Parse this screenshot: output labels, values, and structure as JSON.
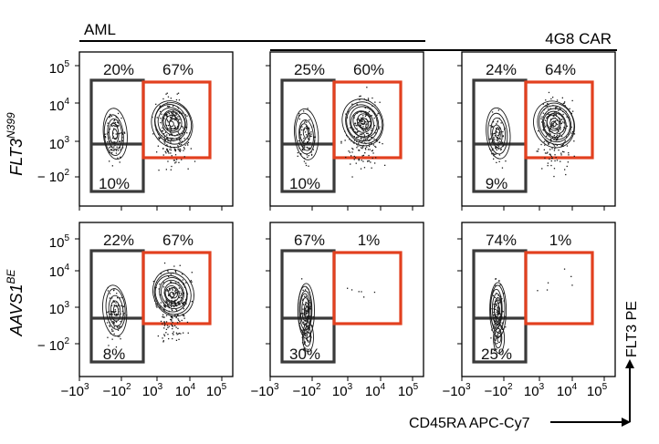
{
  "header": {
    "group_left": "AML",
    "group_right": "4G8 CAR"
  },
  "row_labels": [
    {
      "base": "FLT3",
      "sup": "N399"
    },
    {
      "base": "AAVS1",
      "sup": "BE"
    }
  ],
  "axes": {
    "x_title": "CD45RA APC-Cy7",
    "y_title": "FLT3 PE",
    "y_ticks": [
      {
        "base": "10",
        "exp": "5"
      },
      {
        "base": "10",
        "exp": "4"
      },
      {
        "base": "10",
        "exp": "3"
      },
      {
        "base": "− 10",
        "exp": "2"
      }
    ],
    "x_ticks": [
      {
        "base": "−10",
        "exp": "3"
      },
      {
        "base": "−10",
        "exp": "2"
      },
      {
        "base": "10",
        "exp": "3"
      },
      {
        "base": "10",
        "exp": "4"
      },
      {
        "base": "10",
        "exp": "5"
      }
    ]
  },
  "colors": {
    "gate_negative": "#3a3a3a",
    "gate_positive": "#e2401f",
    "contour": "#1a1a1a",
    "text": "#111111"
  },
  "chart_data": {
    "type": "contour",
    "x_axis": "CD45RA APC-Cy7",
    "y_axis": "FLT3 PE",
    "x_scale": "biexponential",
    "y_scale": "biexponential",
    "x_range": [
      -1000,
      100000
    ],
    "y_range": [
      -100,
      100000
    ],
    "rows": [
      "FLT3 N399",
      "AAVS1 BE"
    ],
    "panels": [
      {
        "row": 0,
        "col": 0,
        "group": "AML",
        "left_pct": "20%",
        "right_pct": "67%",
        "bottom_pct": "10%",
        "positive_cluster": true
      },
      {
        "row": 0,
        "col": 1,
        "group": "4G8 CAR",
        "left_pct": "25%",
        "right_pct": "60%",
        "bottom_pct": "10%",
        "positive_cluster": true
      },
      {
        "row": 0,
        "col": 2,
        "group": "4G8 CAR",
        "left_pct": "24%",
        "right_pct": "64%",
        "bottom_pct": "9%",
        "positive_cluster": true
      },
      {
        "row": 1,
        "col": 0,
        "group": "AML",
        "left_pct": "22%",
        "right_pct": "67%",
        "bottom_pct": "8%",
        "positive_cluster": true
      },
      {
        "row": 1,
        "col": 1,
        "group": "4G8 CAR",
        "left_pct": "67%",
        "right_pct": "1%",
        "bottom_pct": "30%",
        "positive_cluster": false
      },
      {
        "row": 1,
        "col": 2,
        "group": "4G8 CAR",
        "left_pct": "74%",
        "right_pct": "1%",
        "bottom_pct": "25%",
        "positive_cluster": false
      }
    ]
  }
}
